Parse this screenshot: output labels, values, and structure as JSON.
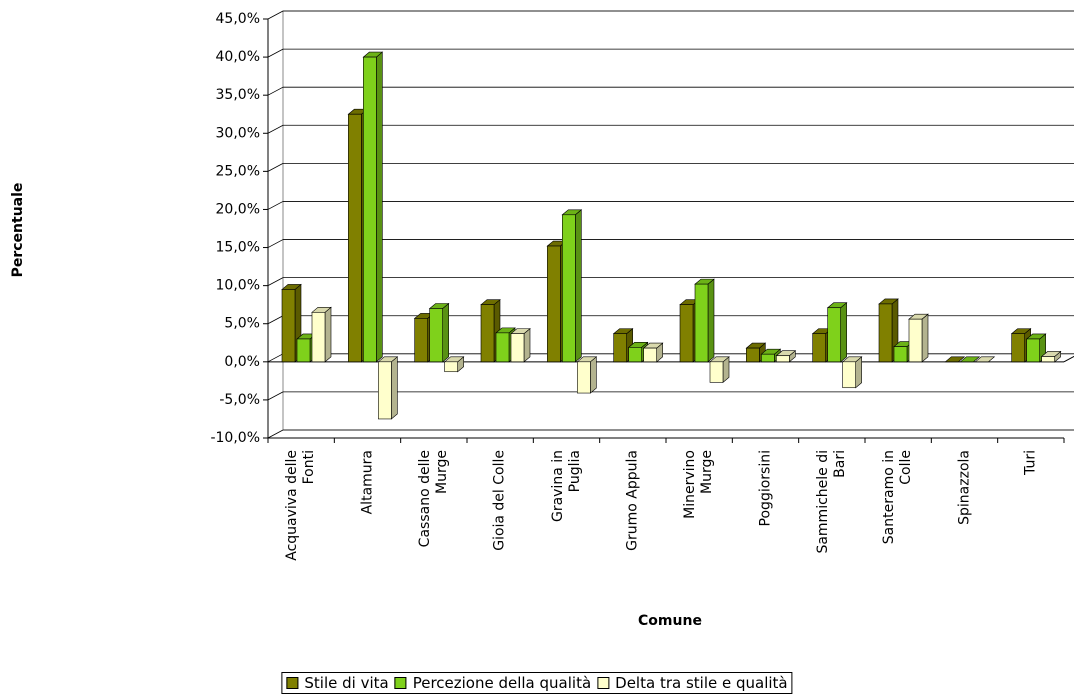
{
  "chart_data": {
    "type": "bar3d",
    "x_label": "Comune",
    "y_label": "Percentuale",
    "categories": [
      "Acquaviva delle\nFonti",
      "Altamura",
      "Cassano delle\nMurge",
      "Gioia del Colle",
      "Gravina in\nPuglia",
      "Grumo Appula",
      "Minervino\nMurge",
      "Poggiorsini",
      "Sammichele di\nBari",
      "Santeramo in\nColle",
      "Spinazzola",
      "Turi"
    ],
    "series": [
      {
        "name": "Stile di vita",
        "color": "#808000",
        "values": [
          9.5,
          32.5,
          5.7,
          7.5,
          15.2,
          3.7,
          7.5,
          1.8,
          3.7,
          7.6,
          0,
          3.7
        ]
      },
      {
        "name": "Percezione della qualità",
        "color": "#7fd11b",
        "values": [
          3.0,
          40.0,
          7.0,
          3.8,
          19.3,
          1.9,
          10.2,
          1.0,
          7.1,
          2.0,
          0,
          3.0
        ]
      },
      {
        "name": "Delta tra stile e qualità",
        "color": "#ffffcc",
        "values": [
          6.5,
          -7.5,
          -1.3,
          3.7,
          -4.1,
          1.8,
          -2.7,
          0.8,
          -3.4,
          5.6,
          0,
          0.7
        ]
      }
    ],
    "ylim": [
      -10,
      45
    ],
    "yticks": [
      {
        "value": -10,
        "label": "-10,0%"
      },
      {
        "value": -5,
        "label": "-5,0%"
      },
      {
        "value": 0,
        "label": "0,0%"
      },
      {
        "value": 5,
        "label": "5,0%"
      },
      {
        "value": 10,
        "label": "10,0%"
      },
      {
        "value": 15,
        "label": "15,0%"
      },
      {
        "value": 20,
        "label": "20,0%"
      },
      {
        "value": 25,
        "label": "25,0%"
      },
      {
        "value": 30,
        "label": "30,0%"
      },
      {
        "value": 35,
        "label": "35,0%"
      },
      {
        "value": 40,
        "label": "40,0%"
      },
      {
        "value": 45,
        "label": "45,0%"
      }
    ],
    "grid": true,
    "legend": "bottom"
  }
}
